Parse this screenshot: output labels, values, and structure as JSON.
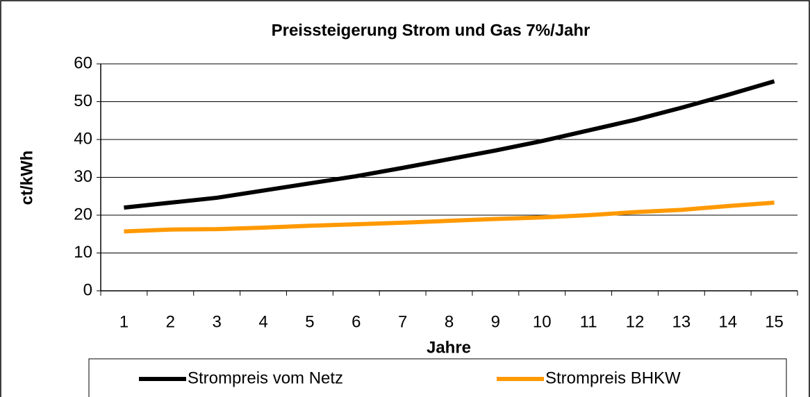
{
  "chart_data": {
    "type": "line",
    "title": "Preissteigerung Strom und Gas 7%/Jahr",
    "xlabel": "Jahre",
    "ylabel": "ct/kWh",
    "categories": [
      "1",
      "2",
      "3",
      "4",
      "5",
      "6",
      "7",
      "8",
      "9",
      "10",
      "11",
      "12",
      "13",
      "14",
      "15"
    ],
    "series": [
      {
        "name": "Strompreis vom Netz",
        "color": "#000000",
        "values": [
          22,
          23.3,
          24.6,
          26.5,
          28.4,
          30.3,
          32.5,
          34.8,
          37.1,
          39.6,
          42.4,
          45.2,
          48.4,
          51.8,
          55.4
        ]
      },
      {
        "name": "Strompreis BHKW",
        "color": "#ff9900",
        "values": [
          15.7,
          16.2,
          16.3,
          16.7,
          17.2,
          17.6,
          18.0,
          18.5,
          19.0,
          19.4,
          20.0,
          20.8,
          21.4,
          22.4,
          23.3
        ]
      }
    ],
    "ylim": [
      0,
      60
    ],
    "yticks": [
      0,
      10,
      20,
      30,
      40,
      50,
      60
    ],
    "grid": true,
    "legend": "bottom"
  }
}
